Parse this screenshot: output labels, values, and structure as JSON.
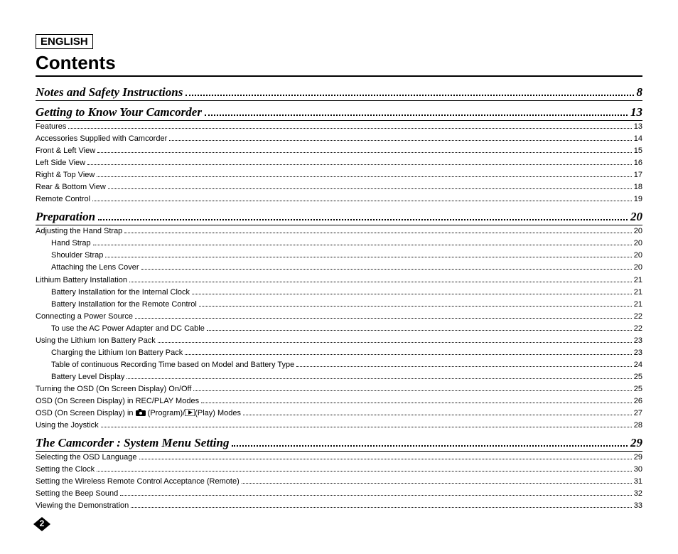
{
  "language_label": "ENGLISH",
  "title": "Contents",
  "page_number": "2",
  "colors": {
    "text": "#000000",
    "background": "#ffffff",
    "section_underline": "#000000",
    "leader": "#000000",
    "badge_fill": "#000000",
    "badge_text": "#ffffff"
  },
  "fonts": {
    "section_family": "Times New Roman",
    "section_style": "italic bold",
    "section_size_pt": 13,
    "item_family": "Arial",
    "item_size_pt": 8,
    "title_size_pt": 20
  },
  "sections": [
    {
      "title": "Notes and Safety Instructions",
      "page": "8",
      "items": []
    },
    {
      "title": "Getting to Know Your Camcorder",
      "page": "13",
      "items": [
        {
          "label": "Features",
          "page": "13",
          "indent": 0
        },
        {
          "label": "Accessories Supplied with Camcorder",
          "page": "14",
          "indent": 0
        },
        {
          "label": "Front & Left View",
          "page": "15",
          "indent": 0
        },
        {
          "label": "Left Side View",
          "page": "16",
          "indent": 0
        },
        {
          "label": "Right & Top View",
          "page": "17",
          "indent": 0
        },
        {
          "label": "Rear & Bottom View",
          "page": "18",
          "indent": 0
        },
        {
          "label": "Remote Control",
          "page": "19",
          "indent": 0
        }
      ]
    },
    {
      "title": "Preparation",
      "page": "20",
      "items": [
        {
          "label": "Adjusting the Hand Strap",
          "page": "20",
          "indent": 0
        },
        {
          "label": "Hand Strap",
          "page": "20",
          "indent": 1
        },
        {
          "label": "Shoulder Strap",
          "page": "20",
          "indent": 1
        },
        {
          "label": "Attaching the Lens Cover",
          "page": "20",
          "indent": 1
        },
        {
          "label": "Lithium Battery Installation",
          "page": "21",
          "indent": 0
        },
        {
          "label": "Battery Installation for the Internal Clock",
          "page": "21",
          "indent": 1
        },
        {
          "label": "Battery Installation for the Remote Control",
          "page": "21",
          "indent": 1
        },
        {
          "label": "Connecting a Power Source",
          "page": "22",
          "indent": 0
        },
        {
          "label": "To use the AC Power Adapter and DC Cable",
          "page": "22",
          "indent": 1
        },
        {
          "label": "Using the Lithium Ion Battery Pack",
          "page": "23",
          "indent": 0
        },
        {
          "label": "Charging the Lithium Ion Battery Pack",
          "page": "23",
          "indent": 1
        },
        {
          "label": "Table of continuous Recording Time based on Model and Battery Type",
          "page": "24",
          "indent": 1
        },
        {
          "label": "Battery Level Display",
          "page": "25",
          "indent": 1
        },
        {
          "label": "Turning the OSD (On Screen Display) On/Off",
          "page": "25",
          "indent": 0
        },
        {
          "label": "OSD (On Screen Display) in REC/PLAY Modes",
          "page": "26",
          "indent": 0
        },
        {
          "label": "OSD (On Screen Display) in ",
          "label_suffix": " (Program)/",
          "label_suffix2": "(Play) Modes",
          "icon1": "camera",
          "icon2": "play",
          "page": "27",
          "indent": 0
        },
        {
          "label": "Using the Joystick",
          "page": "28",
          "indent": 0
        }
      ]
    },
    {
      "title": "The Camcorder : System Menu Setting",
      "page": "29",
      "items": [
        {
          "label": "Selecting  the OSD Language",
          "page": "29",
          "indent": 0
        },
        {
          "label": "Setting the Clock",
          "page": "30",
          "indent": 0
        },
        {
          "label": "Setting the Wireless Remote Control Acceptance (Remote)",
          "page": "31",
          "indent": 0
        },
        {
          "label": "Setting the Beep Sound",
          "page": "32",
          "indent": 0
        },
        {
          "label": "Viewing the Demonstration",
          "page": "33",
          "indent": 0
        }
      ]
    }
  ]
}
